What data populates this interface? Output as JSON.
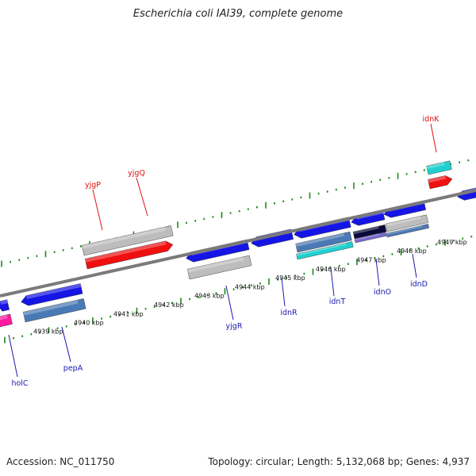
{
  "title": "Escherichia coli IAI39, complete genome",
  "footer": {
    "accession": "Accession: NC_011750",
    "summary": "Topology: circular; Length: 5,132,068 bp; Genes: 4,937"
  },
  "colors": {
    "backbone": "#7a7a7a",
    "tick": "#1b8a1b",
    "label_top": "#e01010",
    "label_bottom": "#1a1ab0",
    "blue": "#1515e6",
    "gray": "#bdbdbd",
    "red": "#f01010",
    "cyan": "#20d0d0",
    "steel": "#4a7ab5",
    "navy": "#0a0a3a",
    "purple": "#7a6ad0",
    "magenta": "#ff1aa0"
  },
  "scale": {
    "labels": [
      "4939 kbp",
      "4940 kbp",
      "4941 kbp",
      "4942 kbp",
      "4943 kbp",
      "4944 kbp",
      "4945 kbp",
      "4946 kbp",
      "4947 kbp",
      "4948 kbp",
      "4949 kbp"
    ]
  },
  "top_genes": [
    {
      "name": "yjgP"
    },
    {
      "name": "yjgQ"
    },
    {
      "name": "idnK"
    }
  ],
  "bottom_genes": [
    {
      "name": "holC"
    },
    {
      "name": "pepA"
    },
    {
      "name": "yjgR"
    },
    {
      "name": "idnR"
    },
    {
      "name": "idnT"
    },
    {
      "name": "idnO"
    },
    {
      "name": "idnD"
    }
  ]
}
